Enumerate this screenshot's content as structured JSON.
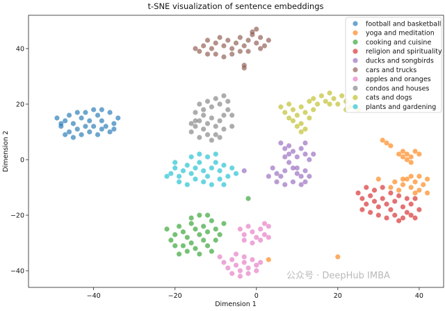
{
  "chart_data": {
    "type": "scatter",
    "title": "t-SNE visualization of sentence embeddings",
    "xlabel": "Dimension 1",
    "ylabel": "Dimension 2",
    "xlim": [
      -56,
      46
    ],
    "ylim": [
      -46,
      52
    ],
    "xticks": [
      -40,
      -20,
      0,
      20,
      40
    ],
    "yticks": [
      -40,
      -20,
      0,
      20,
      40
    ],
    "grid": false,
    "legend_position": "top-right",
    "point_alpha": 0.65,
    "series": [
      {
        "name": "football and basketball",
        "color": "#1f77b4",
        "points": [
          [
            -49,
            15
          ],
          [
            -48,
            12
          ],
          [
            -47,
            14
          ],
          [
            -46,
            16
          ],
          [
            -45,
            13
          ],
          [
            -44,
            11
          ],
          [
            -43,
            15
          ],
          [
            -42,
            17
          ],
          [
            -41,
            14
          ],
          [
            -40,
            12
          ],
          [
            -39,
            16
          ],
          [
            -38,
            14
          ],
          [
            -37,
            12
          ],
          [
            -36,
            10
          ],
          [
            -35,
            13
          ],
          [
            -47,
            9
          ],
          [
            -45,
            8
          ],
          [
            -43,
            9
          ],
          [
            -41,
            10
          ],
          [
            -39,
            9
          ],
          [
            -38,
            11
          ],
          [
            -44,
            17
          ],
          [
            -40,
            18
          ],
          [
            -36,
            17
          ],
          [
            -34,
            15
          ],
          [
            -46,
            10
          ],
          [
            -42,
            12
          ],
          [
            -38,
            18
          ],
          [
            -35,
            11
          ],
          [
            -48,
            13
          ]
        ]
      },
      {
        "name": "yoga and meditation",
        "color": "#ff7f0e",
        "points": [
          [
            31,
            7
          ],
          [
            32,
            6
          ],
          [
            33,
            5
          ],
          [
            36,
            3
          ],
          [
            37,
            2
          ],
          [
            38,
            1
          ],
          [
            39,
            3
          ],
          [
            37,
            0
          ],
          [
            36,
            1
          ],
          [
            38,
            -1
          ],
          [
            40,
            2
          ],
          [
            35,
            2
          ],
          [
            33,
            -10
          ],
          [
            34,
            -8
          ],
          [
            35,
            -11
          ],
          [
            36,
            -9
          ],
          [
            37,
            -7
          ],
          [
            38,
            -10
          ],
          [
            39,
            -8
          ],
          [
            40,
            -11
          ],
          [
            41,
            -9
          ],
          [
            42,
            -7
          ],
          [
            40,
            -6
          ],
          [
            38,
            -6
          ],
          [
            36,
            -7
          ],
          [
            42,
            -12
          ],
          [
            20,
            -35
          ],
          [
            3,
            -36
          ],
          [
            30,
            -7
          ],
          [
            39,
            -12
          ]
        ]
      },
      {
        "name": "cooking and cuisine",
        "color": "#2ca02c",
        "points": [
          [
            -22,
            -25
          ],
          [
            -20,
            -27
          ],
          [
            -19,
            -24
          ],
          [
            -18,
            -26
          ],
          [
            -17,
            -28
          ],
          [
            -16,
            -23
          ],
          [
            -15,
            -25
          ],
          [
            -14,
            -27
          ],
          [
            -13,
            -24
          ],
          [
            -12,
            -26
          ],
          [
            -11,
            -22
          ],
          [
            -10,
            -25
          ],
          [
            -9,
            -27
          ],
          [
            -8,
            -23
          ],
          [
            -18,
            -31
          ],
          [
            -17,
            -33
          ],
          [
            -16,
            -30
          ],
          [
            -15,
            -32
          ],
          [
            -14,
            -34
          ],
          [
            -13,
            -29
          ],
          [
            -19,
            -34
          ],
          [
            -20,
            -31
          ],
          [
            -12,
            -31
          ],
          [
            -11,
            -33
          ],
          [
            -16,
            -21
          ],
          [
            -14,
            -20
          ],
          [
            -12,
            -20
          ],
          [
            -2,
            -14
          ],
          [
            -21,
            -29
          ],
          [
            -10,
            -29
          ]
        ]
      },
      {
        "name": "religion and spirituality",
        "color": "#d62728",
        "points": [
          [
            25,
            -12
          ],
          [
            26,
            -14
          ],
          [
            27,
            -16
          ],
          [
            28,
            -13
          ],
          [
            29,
            -15
          ],
          [
            30,
            -17
          ],
          [
            31,
            -14
          ],
          [
            32,
            -16
          ],
          [
            33,
            -18
          ],
          [
            34,
            -15
          ],
          [
            35,
            -13
          ],
          [
            36,
            -17
          ],
          [
            37,
            -19
          ],
          [
            38,
            -16
          ],
          [
            39,
            -14
          ],
          [
            28,
            -19
          ],
          [
            30,
            -20
          ],
          [
            32,
            -21
          ],
          [
            34,
            -20
          ],
          [
            36,
            -21
          ],
          [
            38,
            -20
          ],
          [
            27,
            -10
          ],
          [
            29,
            -11
          ],
          [
            31,
            -10
          ],
          [
            33,
            -12
          ],
          [
            37,
            -14
          ],
          [
            40,
            -18
          ],
          [
            26,
            -18
          ],
          [
            35,
            -22
          ],
          [
            39,
            -21
          ]
        ]
      },
      {
        "name": "ducks and songbirds",
        "color": "#9467bd",
        "points": [
          [
            6,
            6
          ],
          [
            7,
            4
          ],
          [
            8,
            5
          ],
          [
            9,
            3
          ],
          [
            10,
            1
          ],
          [
            11,
            4
          ],
          [
            12,
            2
          ],
          [
            13,
            0
          ],
          [
            8,
            -1
          ],
          [
            9,
            -3
          ],
          [
            10,
            -5
          ],
          [
            11,
            -6
          ],
          [
            12,
            -8
          ],
          [
            7,
            -4
          ],
          [
            6,
            -6
          ],
          [
            5,
            -5
          ],
          [
            4,
            -3
          ],
          [
            5,
            -8
          ],
          [
            7,
            -9
          ],
          [
            9,
            -8
          ],
          [
            11,
            -9
          ],
          [
            13,
            -6
          ],
          [
            12,
            -4
          ],
          [
            10,
            -3
          ],
          [
            8,
            2
          ],
          [
            3,
            -6
          ],
          [
            -3,
            -4
          ],
          [
            7,
            1
          ],
          [
            12,
            6
          ],
          [
            14,
            2
          ]
        ]
      },
      {
        "name": "cars and trucks",
        "color": "#8c564b",
        "points": [
          [
            -15,
            40
          ],
          [
            -14,
            39
          ],
          [
            -13,
            41
          ],
          [
            -12,
            43
          ],
          [
            -11,
            40
          ],
          [
            -10,
            42
          ],
          [
            -9,
            44
          ],
          [
            -8,
            41
          ],
          [
            -7,
            43
          ],
          [
            -6,
            40
          ],
          [
            -5,
            42
          ],
          [
            -4,
            44
          ],
          [
            -3,
            41
          ],
          [
            -2,
            43
          ],
          [
            -1,
            45
          ],
          [
            0,
            42
          ],
          [
            1,
            44
          ],
          [
            2,
            41
          ],
          [
            3,
            43
          ],
          [
            -10,
            38
          ],
          [
            -8,
            37
          ],
          [
            -6,
            38
          ],
          [
            -4,
            39
          ],
          [
            -2,
            39
          ],
          [
            0,
            47
          ],
          [
            -1,
            46
          ],
          [
            -12,
            38
          ],
          [
            -3,
            34
          ],
          [
            -3,
            33
          ],
          [
            1,
            40
          ]
        ]
      },
      {
        "name": "apples and oranges",
        "color": "#e377c2",
        "points": [
          [
            -4,
            -25
          ],
          [
            -3,
            -27
          ],
          [
            -2,
            -24
          ],
          [
            -1,
            -26
          ],
          [
            0,
            -28
          ],
          [
            1,
            -25
          ],
          [
            2,
            -27
          ],
          [
            3,
            -24
          ],
          [
            -3,
            -29
          ],
          [
            -1,
            -30
          ],
          [
            1,
            -29
          ],
          [
            3,
            -28
          ],
          [
            2,
            -23
          ],
          [
            -8,
            -37
          ],
          [
            -7,
            -39
          ],
          [
            -6,
            -36
          ],
          [
            -5,
            -38
          ],
          [
            -4,
            -40
          ],
          [
            -3,
            -37
          ],
          [
            -2,
            -39
          ],
          [
            -1,
            -36
          ],
          [
            0,
            -38
          ],
          [
            -6,
            -41
          ],
          [
            -4,
            -42
          ],
          [
            -2,
            -41
          ],
          [
            -9,
            -35
          ],
          [
            -5,
            -34
          ],
          [
            -3,
            -35
          ],
          [
            1,
            -37
          ],
          [
            0,
            -40
          ]
        ]
      },
      {
        "name": "condos and houses",
        "color": "#7f7f7f",
        "points": [
          [
            -16,
            10
          ],
          [
            -15,
            12
          ],
          [
            -14,
            14
          ],
          [
            -13,
            11
          ],
          [
            -12,
            13
          ],
          [
            -11,
            15
          ],
          [
            -10,
            12
          ],
          [
            -9,
            14
          ],
          [
            -8,
            11
          ],
          [
            -14,
            8
          ],
          [
            -12,
            9
          ],
          [
            -10,
            9
          ],
          [
            -15,
            17
          ],
          [
            -13,
            18
          ],
          [
            -11,
            19
          ],
          [
            -9,
            20
          ],
          [
            -7,
            21
          ],
          [
            -12,
            21
          ],
          [
            -10,
            22
          ],
          [
            -8,
            23
          ],
          [
            -7,
            18
          ],
          [
            -6,
            16
          ],
          [
            -8,
            16
          ],
          [
            -13,
            16
          ],
          [
            -15,
            14
          ],
          [
            -11,
            7
          ],
          [
            -9,
            8
          ],
          [
            -6,
            12
          ],
          [
            -14,
            20
          ],
          [
            -16,
            13
          ]
        ]
      },
      {
        "name": "cats and dogs",
        "color": "#bcbd22",
        "points": [
          [
            6,
            19
          ],
          [
            7,
            17
          ],
          [
            8,
            20
          ],
          [
            9,
            18
          ],
          [
            10,
            16
          ],
          [
            11,
            19
          ],
          [
            12,
            17
          ],
          [
            13,
            15
          ],
          [
            9,
            14
          ],
          [
            10,
            12
          ],
          [
            11,
            13
          ],
          [
            12,
            11
          ],
          [
            8,
            15
          ],
          [
            14,
            18
          ],
          [
            13,
            21
          ],
          [
            14,
            22
          ],
          [
            16,
            23
          ],
          [
            17,
            21
          ],
          [
            18,
            24
          ],
          [
            19,
            22
          ],
          [
            20,
            20
          ],
          [
            21,
            23
          ],
          [
            22,
            21
          ],
          [
            23,
            19
          ],
          [
            24,
            22
          ],
          [
            25,
            18
          ],
          [
            22,
            18
          ],
          [
            18,
            20
          ],
          [
            11,
            10
          ],
          [
            15,
            20
          ]
        ]
      },
      {
        "name": "plants and gardening",
        "color": "#17becf",
        "points": [
          [
            -21,
            -5
          ],
          [
            -20,
            -3
          ],
          [
            -19,
            -6
          ],
          [
            -18,
            -4
          ],
          [
            -17,
            -2
          ],
          [
            -16,
            -5
          ],
          [
            -15,
            -3
          ],
          [
            -14,
            -1
          ],
          [
            -13,
            -4
          ],
          [
            -12,
            -6
          ],
          [
            -11,
            -3
          ],
          [
            -10,
            -1
          ],
          [
            -9,
            -4
          ],
          [
            -8,
            -2
          ],
          [
            -7,
            -6
          ],
          [
            -6,
            -3
          ],
          [
            -19,
            -8
          ],
          [
            -17,
            -9
          ],
          [
            -15,
            -7
          ],
          [
            -13,
            -8
          ],
          [
            -11,
            -9
          ],
          [
            -9,
            -7
          ],
          [
            -16,
            1
          ],
          [
            -14,
            2
          ],
          [
            -12,
            1
          ],
          [
            -10,
            2
          ],
          [
            -8,
            -9
          ],
          [
            -22,
            -6
          ],
          [
            -20,
            -1
          ],
          [
            -5,
            -5
          ]
        ]
      }
    ]
  },
  "watermark": {
    "text": "公众号 · DeepHub IMBA"
  }
}
